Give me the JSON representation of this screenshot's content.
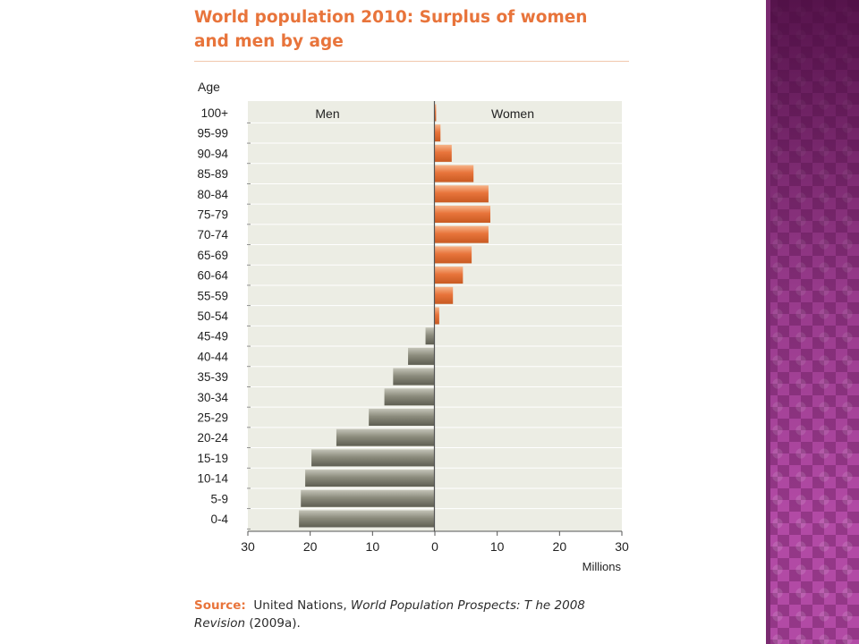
{
  "title": "World population 2010: Surplus of women and men by age",
  "source": {
    "label": "Source:",
    "text_plain": "United Nations,",
    "text_italic": "World Population Prospects: T he 2008 Revision",
    "text_tail": "(2009a)."
  },
  "colors": {
    "women": "#e8743b",
    "men": "#8c8c7d",
    "plot_bg": "#ecede4",
    "title": "#e8743b",
    "side_panel": "#b24aa5"
  },
  "side_panel_icon": "purple-diamond-pattern",
  "chart_data": {
    "type": "bar",
    "orientation": "horizontal",
    "title": "World population 2010: Surplus of women and men by age",
    "ylabel": "Age",
    "xlabel": "Millions",
    "xlim": [
      -30,
      30
    ],
    "x_ticks": [
      -30,
      -20,
      -10,
      0,
      10,
      20,
      30
    ],
    "x_tick_labels": [
      "30",
      "20",
      "10",
      "0",
      "10",
      "20",
      "30"
    ],
    "grid": false,
    "panel_labels": {
      "left": "Men",
      "right": "Women"
    },
    "categories": [
      "100+",
      "95-99",
      "90-94",
      "85-89",
      "80-84",
      "75-79",
      "70-74",
      "65-69",
      "60-64",
      "55-59",
      "50-54",
      "45-49",
      "40-44",
      "35-39",
      "30-34",
      "25-29",
      "20-24",
      "15-19",
      "10-14",
      "5-9",
      "0-4"
    ],
    "series": [
      {
        "name": "Women",
        "values": [
          0.2,
          0.9,
          2.7,
          6.2,
          8.6,
          8.9,
          8.6,
          5.9,
          4.5,
          2.9,
          0.7,
          0,
          0,
          0,
          0,
          0,
          0,
          0,
          0,
          0,
          0
        ]
      },
      {
        "name": "Men",
        "values": [
          0,
          0,
          0,
          0,
          0,
          0,
          0,
          0,
          0,
          0,
          0,
          1.5,
          4.3,
          6.7,
          8.1,
          10.6,
          15.8,
          19.8,
          20.8,
          21.5,
          21.8
        ]
      }
    ]
  }
}
